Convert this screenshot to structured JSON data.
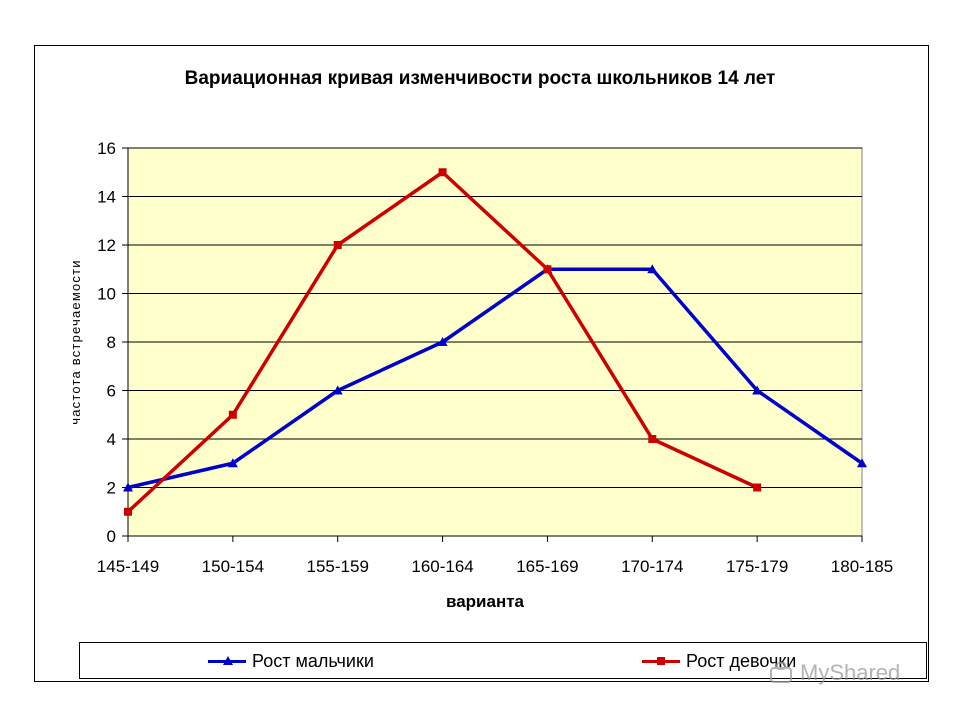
{
  "chart_data": {
    "type": "line",
    "title": "Вариационная кривая изменчивости роста школьников 14 лет",
    "xlabel": "варианта",
    "ylabel": "частота встречаемости",
    "categories": [
      "145-149",
      "150-154",
      "155-159",
      "160-164",
      "165-169",
      "170-174",
      "175-179",
      "180-185"
    ],
    "ylim": [
      0,
      16
    ],
    "yticks": [
      0,
      2,
      4,
      6,
      8,
      10,
      12,
      14,
      16
    ],
    "grid": true,
    "legend_position": "bottom",
    "plot_background": "#ffffcc",
    "series": [
      {
        "name": "Рост мальчики",
        "color": "#0000cc",
        "marker": "triangle",
        "values": [
          2,
          3,
          6,
          8,
          11,
          11,
          6,
          3
        ]
      },
      {
        "name": "Рост девочки",
        "color": "#cc0000",
        "marker": "square",
        "values": [
          1,
          5,
          12,
          15,
          11,
          4,
          2,
          null
        ]
      }
    ]
  },
  "watermark": {
    "text": "MyShared"
  }
}
